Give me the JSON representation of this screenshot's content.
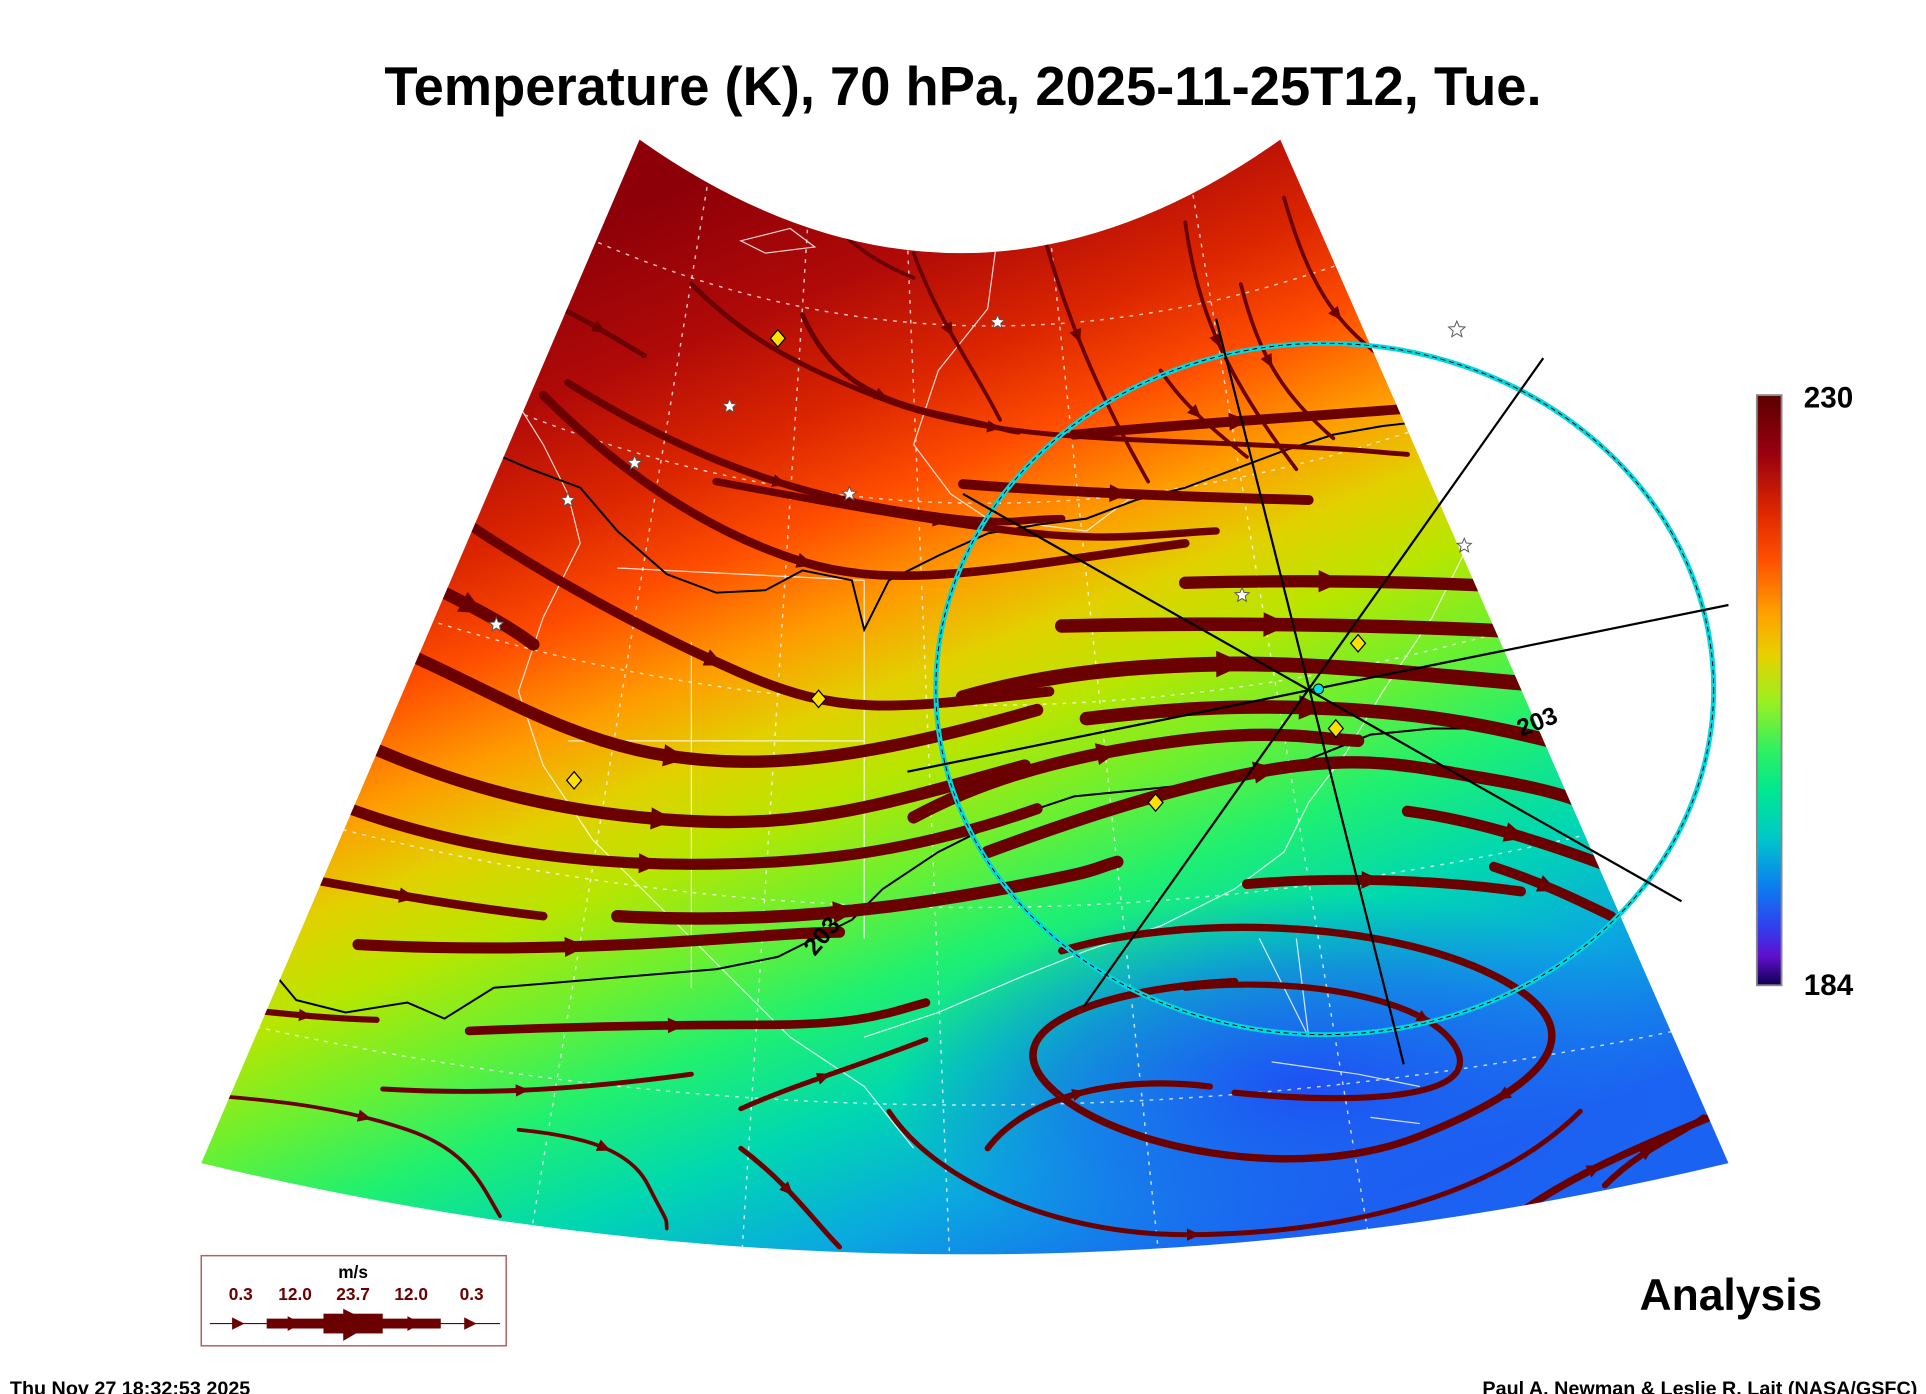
{
  "title": "Temperature (K), 70 hPa, 2025-11-25T12, Tue.",
  "colorbar": {
    "max_label": "230",
    "min_label": "184",
    "max": 230,
    "min": 184
  },
  "contour_labels": [
    "203",
    "203"
  ],
  "product_label": "Analysis",
  "wind_legend": {
    "units": "m/s",
    "values": [
      "0.3",
      "12.0",
      "23.7",
      "12.0",
      "0.3"
    ],
    "color": "#6b0000"
  },
  "footer": {
    "timestamp": "Thu Nov 27 18:32:53 2025",
    "credit": "Paul A. Newman & Leslie R. Lait (NASA/GSFC)"
  },
  "markers": {
    "diamond_color": "#ffe000",
    "star_color": "#ffffff",
    "ring_color": "#00d8e0"
  }
}
